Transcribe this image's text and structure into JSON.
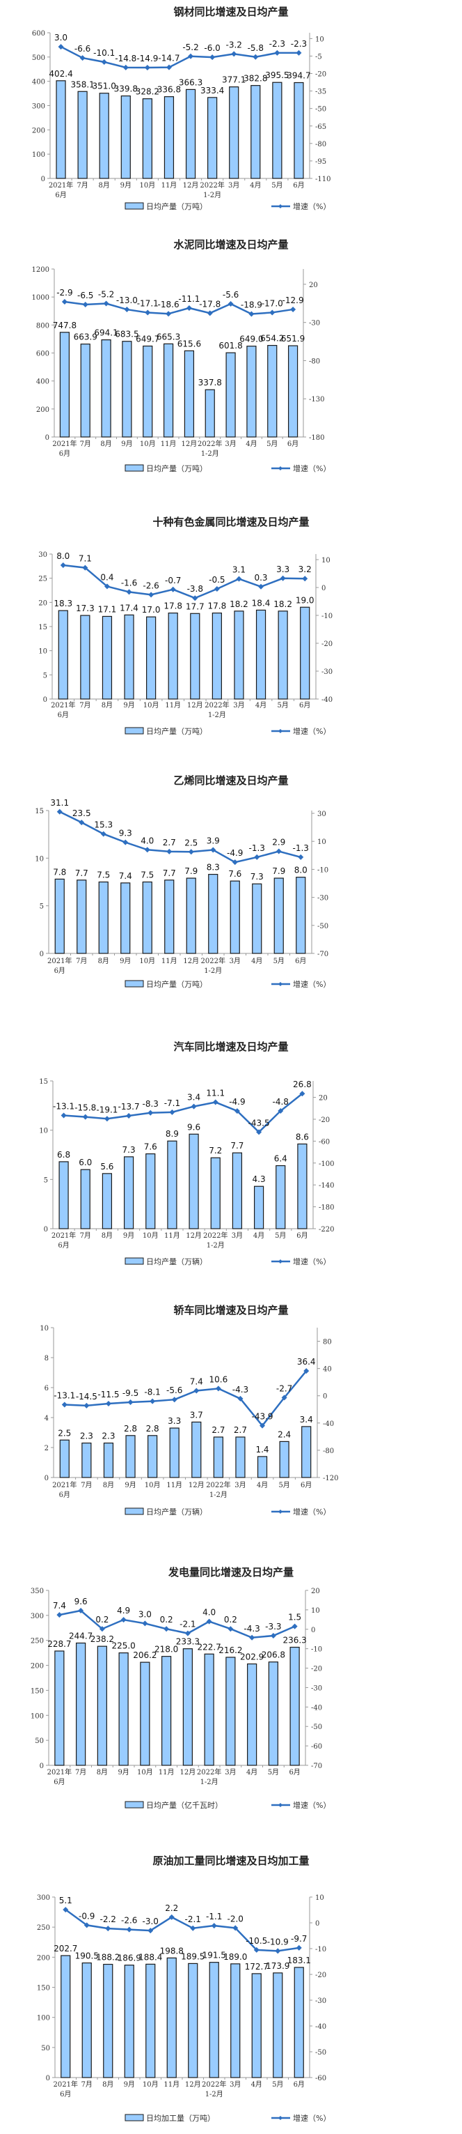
{
  "chart_data": [
    {
      "type": "bar+line",
      "title": "钢材同比增速及日均产量",
      "categories": [
        "2021年 6月",
        "7月",
        "8月",
        "9月",
        "10月",
        "11月",
        "12月",
        "2022年 1-2月",
        "3月",
        "4月",
        "5月",
        "6月"
      ],
      "series": [
        {
          "name": "日均产量（万吨）",
          "type": "bar",
          "axis": "left",
          "values": [
            402.4,
            358.1,
            351.0,
            339.8,
            328.2,
            336.8,
            366.3,
            333.4,
            377.1,
            382.8,
            395.5,
            394.7
          ],
          "labels": [
            "402.4",
            "358.1",
            "351.0",
            "339.8",
            "328.2",
            "336.8",
            "366.3",
            "333.4",
            "377.1",
            "382.8",
            "395.5",
            "394.7"
          ]
        },
        {
          "name": "增速（%）",
          "type": "line",
          "axis": "right",
          "values": [
            3.0,
            -6.6,
            -10.1,
            -14.8,
            -14.9,
            -14.7,
            -5.2,
            -6.0,
            -3.2,
            -5.8,
            -2.3,
            -2.3
          ],
          "labels": [
            "3.0",
            "-6.6",
            "-10.1",
            "-14.8",
            "-14.9",
            "-14.7",
            "-5.2",
            "-6.0",
            "-3.2",
            "-5.8",
            "-2.3",
            "-2.3"
          ]
        }
      ],
      "ylim_left": [
        0,
        600
      ],
      "yticks_left": [
        0,
        100,
        200,
        300,
        400,
        500,
        600
      ],
      "ylim_right": [
        -110,
        15
      ],
      "yticks_right": [
        -110,
        -95,
        -80,
        -65,
        -50,
        -35,
        -20,
        -5,
        10
      ],
      "legend": "bottom"
    },
    {
      "type": "bar+line",
      "title": "水泥同比增速及日均产量",
      "categories": [
        "2021年 6月",
        "7月",
        "8月",
        "9月",
        "10月",
        "11月",
        "12月",
        "2022年 1-2月",
        "3月",
        "4月",
        "5月",
        "6月"
      ],
      "series": [
        {
          "name": "日均产量（万吨）",
          "type": "bar",
          "axis": "left",
          "values": [
            747.8,
            663.9,
            694.1,
            683.5,
            649.7,
            665.3,
            615.6,
            337.8,
            601.8,
            649.0,
            654.2,
            651.9
          ],
          "labels": [
            "747.8",
            "663.9",
            "694.1",
            "683.5",
            "649.7",
            "665.3",
            "615.6",
            "337.8",
            "601.8",
            "649.0",
            "654.2",
            "651.9"
          ]
        },
        {
          "name": "增速（%）",
          "type": "line",
          "axis": "right",
          "values": [
            -2.9,
            -6.5,
            -5.2,
            -13.0,
            -17.1,
            -18.6,
            -11.1,
            -17.8,
            -5.6,
            -18.9,
            -17.0,
            -12.9
          ],
          "labels": [
            "-2.9",
            "-6.5",
            "-5.2",
            "-13.0",
            "-17.1",
            "-18.6",
            "-11.1",
            "-17.8",
            "-5.6",
            "-18.9",
            "-17.0",
            "-12.9"
          ]
        }
      ],
      "ylim_left": [
        0,
        1200
      ],
      "yticks_left": [
        0,
        200,
        400,
        600,
        800,
        1000,
        1200
      ],
      "ylim_right": [
        -180,
        40
      ],
      "yticks_right": [
        -180,
        -130,
        -80,
        -30,
        20
      ],
      "legend": "bottom"
    },
    {
      "type": "bar+line",
      "title": "十种有色金属同比增速及日均产量",
      "categories": [
        "2021年 6月",
        "7月",
        "8月",
        "9月",
        "10月",
        "11月",
        "12月",
        "2022年 1-2月",
        "3月",
        "4月",
        "5月",
        "6月"
      ],
      "series": [
        {
          "name": "日均产量（万吨）",
          "type": "bar",
          "axis": "left",
          "values": [
            18.3,
            17.3,
            17.1,
            17.4,
            17.0,
            17.8,
            17.7,
            17.8,
            18.2,
            18.4,
            18.2,
            19.0
          ],
          "labels": [
            "18.3",
            "17.3",
            "17.1",
            "17.4",
            "17.0",
            "17.8",
            "17.7",
            "17.8",
            "18.2",
            "18.4",
            "18.2",
            "19.0"
          ]
        },
        {
          "name": "增速（%）",
          "type": "line",
          "axis": "right",
          "values": [
            8.0,
            7.1,
            0.4,
            -1.6,
            -2.6,
            -0.7,
            -3.8,
            -0.5,
            3.1,
            0.3,
            3.3,
            3.2
          ],
          "labels": [
            "8.0",
            "7.1",
            "0.4",
            "-1.6",
            "-2.6",
            "-0.7",
            "-3.8",
            "-0.5",
            "3.1",
            "0.3",
            "3.3",
            "3.2"
          ]
        }
      ],
      "ylim_left": [
        0,
        30
      ],
      "yticks_left": [
        0,
        5,
        10,
        15,
        20,
        25,
        30
      ],
      "ylim_right": [
        -40,
        12
      ],
      "yticks_right": [
        -40,
        -30,
        -20,
        -10,
        0,
        10
      ],
      "legend": "bottom"
    },
    {
      "type": "bar+line",
      "title": "乙烯同比增速及日均产量",
      "categories": [
        "2021年 6月",
        "7月",
        "8月",
        "9月",
        "10月",
        "11月",
        "12月",
        "2022年 1-2月",
        "3月",
        "4月",
        "5月",
        "6月"
      ],
      "series": [
        {
          "name": "日均产量（万吨）",
          "type": "bar",
          "axis": "left",
          "values": [
            7.8,
            7.7,
            7.5,
            7.4,
            7.5,
            7.7,
            7.9,
            8.3,
            7.6,
            7.3,
            7.9,
            8.0
          ],
          "labels": [
            "7.8",
            "7.7",
            "7.5",
            "7.4",
            "7.5",
            "7.7",
            "7.9",
            "8.3",
            "7.6",
            "7.3",
            "7.9",
            "8.0"
          ]
        },
        {
          "name": "增速（%）",
          "type": "line",
          "axis": "right",
          "values": [
            31.1,
            23.5,
            15.3,
            9.3,
            4.0,
            2.7,
            2.5,
            3.9,
            -4.9,
            -1.3,
            2.9,
            -1.3
          ],
          "labels": [
            "31.1",
            "23.5",
            "15.3",
            "9.3",
            "4.0",
            "2.7",
            "2.5",
            "3.9",
            "-4.9",
            "-1.3",
            "2.9",
            "-1.3"
          ]
        }
      ],
      "ylim_left": [
        0,
        15
      ],
      "yticks_left": [
        0,
        5,
        10,
        15
      ],
      "ylim_right": [
        -70,
        32
      ],
      "yticks_right": [
        -70,
        -50,
        -30,
        -10,
        10,
        30
      ],
      "legend": "bottom"
    },
    {
      "type": "bar+line",
      "title": "汽车同比增速及日均产量",
      "categories": [
        "2021年 6月",
        "7月",
        "8月",
        "9月",
        "10月",
        "11月",
        "12月",
        "2022年 1-2月",
        "3月",
        "4月",
        "5月",
        "6月"
      ],
      "series": [
        {
          "name": "日均产量（万辆）",
          "type": "bar",
          "axis": "left",
          "values": [
            6.8,
            6.0,
            5.6,
            7.3,
            7.6,
            8.9,
            9.6,
            7.2,
            7.7,
            4.3,
            6.4,
            8.6
          ],
          "labels": [
            "6.8",
            "6.0",
            "5.6",
            "7.3",
            "7.6",
            "8.9",
            "9.6",
            "7.2",
            "7.7",
            "4.3",
            "6.4",
            "8.6"
          ]
        },
        {
          "name": "增速（%）",
          "type": "line",
          "axis": "right",
          "values": [
            -13.1,
            -15.8,
            -19.1,
            -13.7,
            -8.3,
            -7.1,
            3.4,
            11.1,
            -4.9,
            -43.5,
            -4.8,
            26.8
          ],
          "labels": [
            "-13.1",
            "-15.8",
            "-19.1",
            "-13.7",
            "-8.3",
            "-7.1",
            "3.4",
            "11.1",
            "-4.9",
            "-43.5",
            "-4.8",
            "26.8"
          ]
        }
      ],
      "ylim_left": [
        0,
        15
      ],
      "yticks_left": [
        0,
        5,
        10,
        15
      ],
      "ylim_right": [
        -220,
        50
      ],
      "yticks_right": [
        -220,
        -180,
        -140,
        -100,
        -60,
        -20,
        20
      ],
      "legend": "bottom"
    },
    {
      "type": "bar+line",
      "title": "轿车同比增速及日均产量",
      "categories": [
        "2021年 6月",
        "7月",
        "8月",
        "9月",
        "10月",
        "11月",
        "12月",
        "2022年 1-2月",
        "3月",
        "4月",
        "5月",
        "6月"
      ],
      "series": [
        {
          "name": "日均产量（万辆）",
          "type": "bar",
          "axis": "left",
          "values": [
            2.5,
            2.3,
            2.3,
            2.8,
            2.8,
            3.3,
            3.7,
            2.7,
            2.7,
            1.4,
            2.4,
            3.4
          ],
          "labels": [
            "2.5",
            "2.3",
            "2.3",
            "2.8",
            "2.8",
            "3.3",
            "3.7",
            "2.7",
            "2.7",
            "1.4",
            "2.4",
            "3.4"
          ]
        },
        {
          "name": "增速（%）",
          "type": "line",
          "axis": "right",
          "values": [
            -13.1,
            -14.5,
            -11.5,
            -9.5,
            -8.1,
            -5.6,
            7.4,
            10.6,
            -4.3,
            -43.9,
            -2.7,
            36.4
          ],
          "labels": [
            "-13.1",
            "-14.5",
            "-11.5",
            "-9.5",
            "-8.1",
            "-5.6",
            "7.4",
            "10.6",
            "-4.3",
            "-43.9",
            "-2.7",
            "36.4"
          ]
        }
      ],
      "ylim_left": [
        0,
        10
      ],
      "yticks_left": [
        0,
        2,
        4,
        6,
        8,
        10
      ],
      "ylim_right": [
        -120,
        100
      ],
      "yticks_right": [
        -120,
        -80,
        -40,
        0,
        40,
        80
      ],
      "legend": "bottom"
    },
    {
      "type": "bar+line",
      "title": "发电量同比增速及日均产量",
      "categories": [
        "2021年 6月",
        "7月",
        "8月",
        "9月",
        "10月",
        "11月",
        "12月",
        "2022年 1-2月",
        "3月",
        "4月",
        "5月",
        "6月"
      ],
      "series": [
        {
          "name": "日均产量（亿千瓦时）",
          "type": "bar",
          "axis": "left",
          "values": [
            228.7,
            244.7,
            238.2,
            225.0,
            206.2,
            218.0,
            233.3,
            222.7,
            216.2,
            202.9,
            206.8,
            236.3
          ],
          "labels": [
            "228.7",
            "244.7",
            "238.2",
            "225.0",
            "206.2",
            "218.0",
            "233.3",
            "222.7",
            "216.2",
            "202.9",
            "206.8",
            "236.3"
          ]
        },
        {
          "name": "增速（%）",
          "type": "line",
          "axis": "right",
          "values": [
            7.4,
            9.6,
            0.2,
            4.9,
            3.0,
            0.2,
            -2.1,
            4.0,
            0.2,
            -4.3,
            -3.3,
            1.5
          ],
          "labels": [
            "7.4",
            "9.6",
            "0.2",
            "4.9",
            "3.0",
            "0.2",
            "-2.1",
            "4.0",
            "0.2",
            "-4.3",
            "-3.3",
            "1.5"
          ]
        }
      ],
      "ylim_left": [
        0,
        350
      ],
      "yticks_left": [
        0,
        50,
        100,
        150,
        200,
        250,
        300,
        350
      ],
      "ylim_right": [
        -70,
        20
      ],
      "yticks_right": [
        -70,
        -60,
        -50,
        -40,
        -30,
        -20,
        -10,
        0,
        10,
        20
      ],
      "legend": "bottom"
    },
    {
      "type": "bar+line",
      "title": "原油加工量同比增速及日均加工量",
      "categories": [
        "2021年 6月",
        "7月",
        "8月",
        "9月",
        "10月",
        "11月",
        "12月",
        "2022年 1-2月",
        "3月",
        "4月",
        "5月",
        "6月"
      ],
      "series": [
        {
          "name": "日均加工量（万吨）",
          "type": "bar",
          "axis": "left",
          "values": [
            202.7,
            190.5,
            188.2,
            186.9,
            188.4,
            198.8,
            189.5,
            191.5,
            189.0,
            172.7,
            173.9,
            183.1
          ],
          "labels": [
            "202.7",
            "190.5",
            "188.2",
            "186.9",
            "188.4",
            "198.8",
            "189.5",
            "191.5",
            "189.0",
            "172.7",
            "173.9",
            "183.1"
          ]
        },
        {
          "name": "增速（%）",
          "type": "line",
          "axis": "right",
          "values": [
            5.1,
            -0.9,
            -2.2,
            -2.6,
            -3.0,
            2.2,
            -2.1,
            -1.1,
            -2.0,
            -10.5,
            -10.9,
            -9.7
          ],
          "labels": [
            "5.1",
            "-0.9",
            "-2.2",
            "-2.6",
            "-3.0",
            "2.2",
            "-2.1",
            "-1.1",
            "-2.0",
            "-10.5",
            "-10.9",
            "-9.7"
          ]
        }
      ],
      "ylim_left": [
        0,
        300
      ],
      "yticks_left": [
        0,
        50,
        100,
        150,
        200,
        250,
        300
      ],
      "ylim_right": [
        -60,
        10
      ],
      "yticks_right": [
        -60,
        -50,
        -40,
        -30,
        -20,
        -10,
        0,
        10
      ],
      "legend": "bottom"
    }
  ],
  "colors": {
    "bar_fill": "#99ccff",
    "bar_stroke": "#1a1a1a",
    "line": "#2e6fc0",
    "axis": "#999999"
  }
}
